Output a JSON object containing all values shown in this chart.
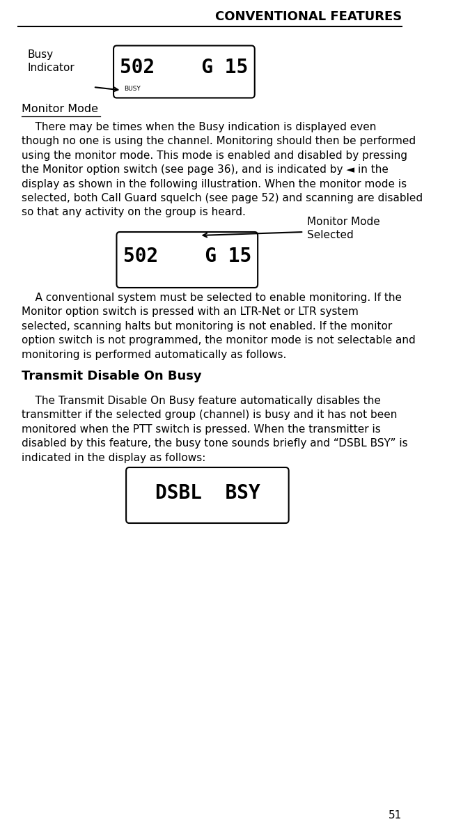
{
  "title": "CONVENTIONAL FEATURES",
  "page_number": "51",
  "background_color": "#ffffff",
  "text_color": "#000000",
  "section1_heading": "Monitor Mode",
  "section2_heading": "Transmit Disable On Busy",
  "display1_subtext": "BUSY",
  "display1_label": "Busy\nIndicator",
  "display2_label": "Monitor Mode\nSelected",
  "font_body": 11.0,
  "font_heading1": 11.5,
  "font_heading2": 13,
  "font_title": 13,
  "font_display": 20,
  "font_display3": 20
}
